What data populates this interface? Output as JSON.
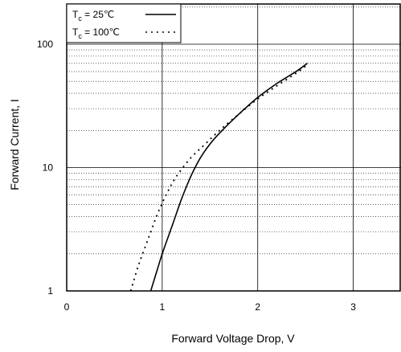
{
  "chart_data": {
    "type": "line",
    "xlabel": "Forward Voltage Drop, V",
    "ylabel": "Forward Current,  I",
    "xlim": [
      0,
      3.5
    ],
    "ylim": [
      1,
      100
    ],
    "y_scale": "log",
    "x_ticks": [
      "0",
      "1",
      "2",
      "3"
    ],
    "y_ticks": [
      "1",
      "10",
      "100"
    ],
    "grid": true,
    "minor_grid": "dotted",
    "legend_position": "top-left",
    "series": [
      {
        "name": "T_c = 25℃",
        "legend_main": "T",
        "legend_sub": "c",
        "legend_rest": " =   25℃",
        "style": "solid",
        "color": "#000000",
        "x": [
          0.88,
          0.95,
          1.0,
          1.1,
          1.2,
          1.3,
          1.4,
          1.5,
          1.6,
          1.8,
          2.0,
          2.2,
          2.4,
          2.52
        ],
        "y": [
          1.0,
          1.5,
          2.0,
          3.3,
          5.5,
          8.5,
          12.0,
          15.5,
          19.0,
          27.0,
          37.0,
          48.0,
          60.0,
          70.0
        ]
      },
      {
        "name": "T_c = 100℃",
        "legend_main": "T",
        "legend_sub": "c",
        "legend_rest": " = 100℃",
        "style": "dotted",
        "color": "#000000",
        "x": [
          0.67,
          0.75,
          0.85,
          0.95,
          1.05,
          1.15,
          1.3,
          1.45,
          1.6,
          1.8,
          2.0,
          2.2,
          2.4,
          2.52
        ],
        "y": [
          1.0,
          1.6,
          2.6,
          4.2,
          6.2,
          8.5,
          12.0,
          15.5,
          20.0,
          27.0,
          36.0,
          46.0,
          58.0,
          68.0
        ]
      }
    ]
  }
}
